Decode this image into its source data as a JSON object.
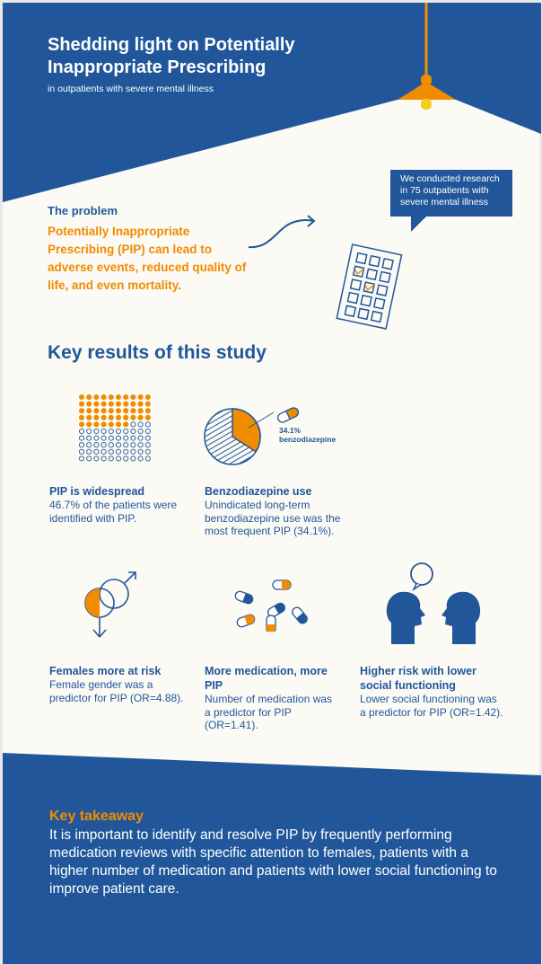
{
  "header": {
    "title": "Shedding light on Potentially Inappropriate Prescribing",
    "subtitle": "in outpatients with severe mental illness"
  },
  "research_bubble": "We conducted research in 75 outpatients with severe mental illness",
  "problem": {
    "heading": "The problem",
    "text": "Potentially Inappropriate Prescribing (PIP) can lead to adverse events, reduced quality of life, and even mortality."
  },
  "key_results": {
    "heading": "Key results of this study",
    "items": [
      {
        "title": "PIP is widespread",
        "text": "46.7% of the patients were identified with PIP."
      },
      {
        "title": "Benzodiazepine use",
        "text": "Unindicated long-term benzodiazepine use was the most frequent PIP (34.1%).",
        "chart_label": "34.1% benzodiazepine"
      },
      {
        "title": "Females more at risk",
        "text": "Female gender was a predictor for PIP (OR=4.88)."
      },
      {
        "title": "More medication, more PIP",
        "text": "Number of medication was a predictor for PIP (OR=1.41)."
      },
      {
        "title": "Higher risk with lower social functioning",
        "text": "Lower social functioning was a predictor for PIP (OR=1.42)."
      }
    ]
  },
  "pip_dots": {
    "total": 100,
    "highlighted": 47
  },
  "benzo_share": 0.341,
  "takeaway": {
    "heading": "Key takeaway",
    "text": "It is important to identify and resolve PIP by frequently performing medication reviews with specific attention to females, patients with a higher number of medication and patients with lower social functioning to improve patient care."
  },
  "colors": {
    "blue": "#21579a",
    "orange": "#f08c00",
    "background": "#fbfaf5"
  }
}
